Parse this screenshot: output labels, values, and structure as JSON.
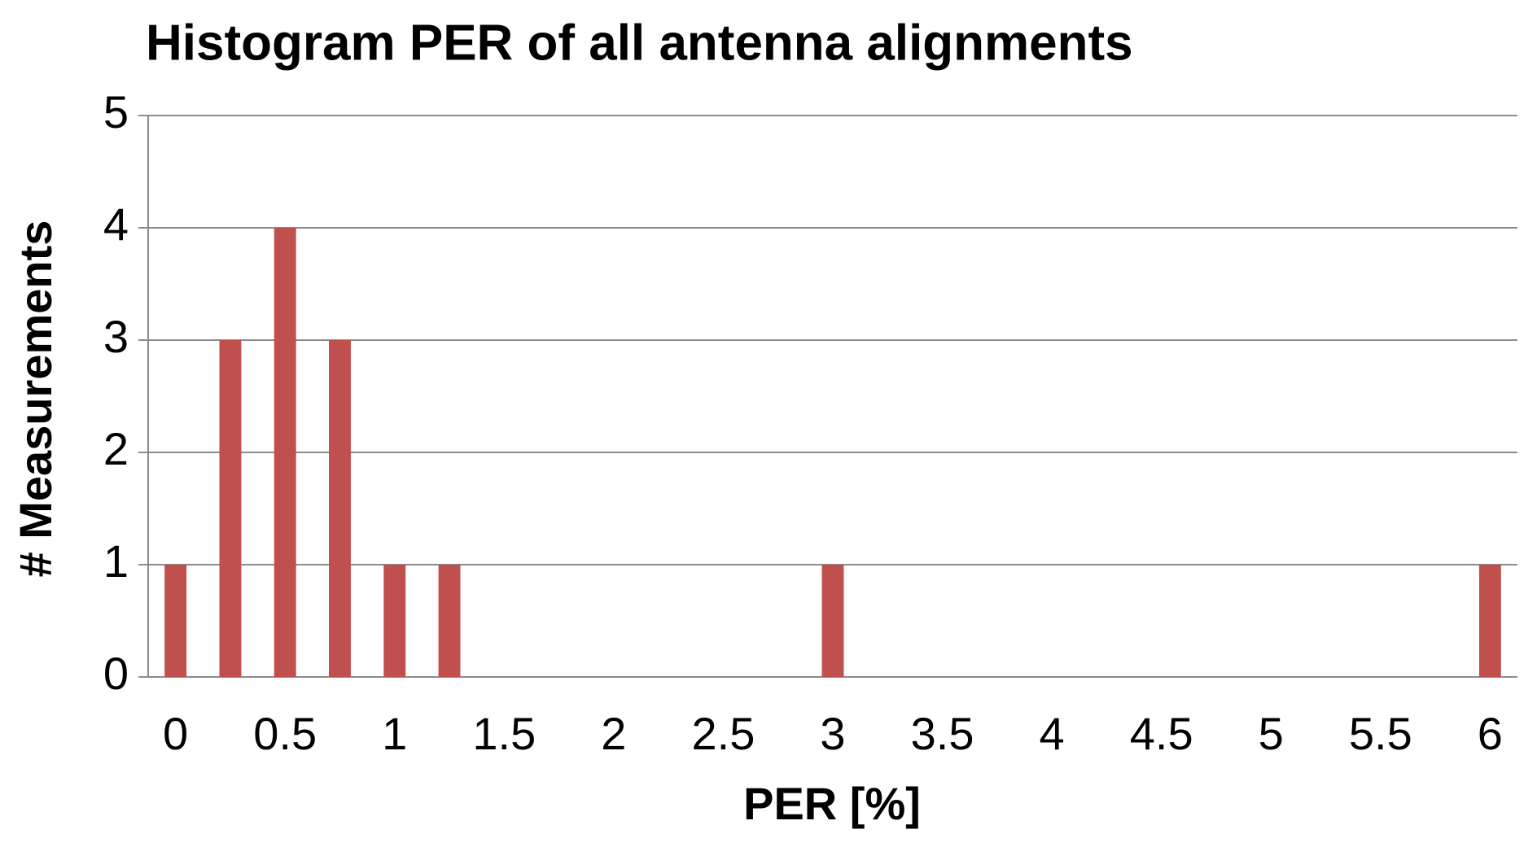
{
  "chart_data": {
    "type": "bar",
    "title": "Histogram PER of all antenna  alignments",
    "x_label": "PER [%]",
    "y_label": "# Measurements",
    "categories": [
      "0",
      null,
      "0.5",
      null,
      "1",
      null,
      "1.5",
      null,
      "2",
      null,
      "2.5",
      null,
      "3",
      null,
      "3.5",
      null,
      "4",
      null,
      "4.5",
      null,
      "5",
      null,
      "5.5",
      null,
      "6"
    ],
    "values": [
      1,
      3,
      4,
      3,
      1,
      1,
      0,
      0,
      0,
      0,
      0,
      0,
      1,
      0,
      0,
      0,
      0,
      0,
      0,
      0,
      0,
      0,
      0,
      0,
      1
    ],
    "color": "#c0504d",
    "ylim": [
      0,
      5
    ],
    "yticks": [
      0,
      1,
      2,
      3,
      4,
      5
    ],
    "grid": true
  }
}
